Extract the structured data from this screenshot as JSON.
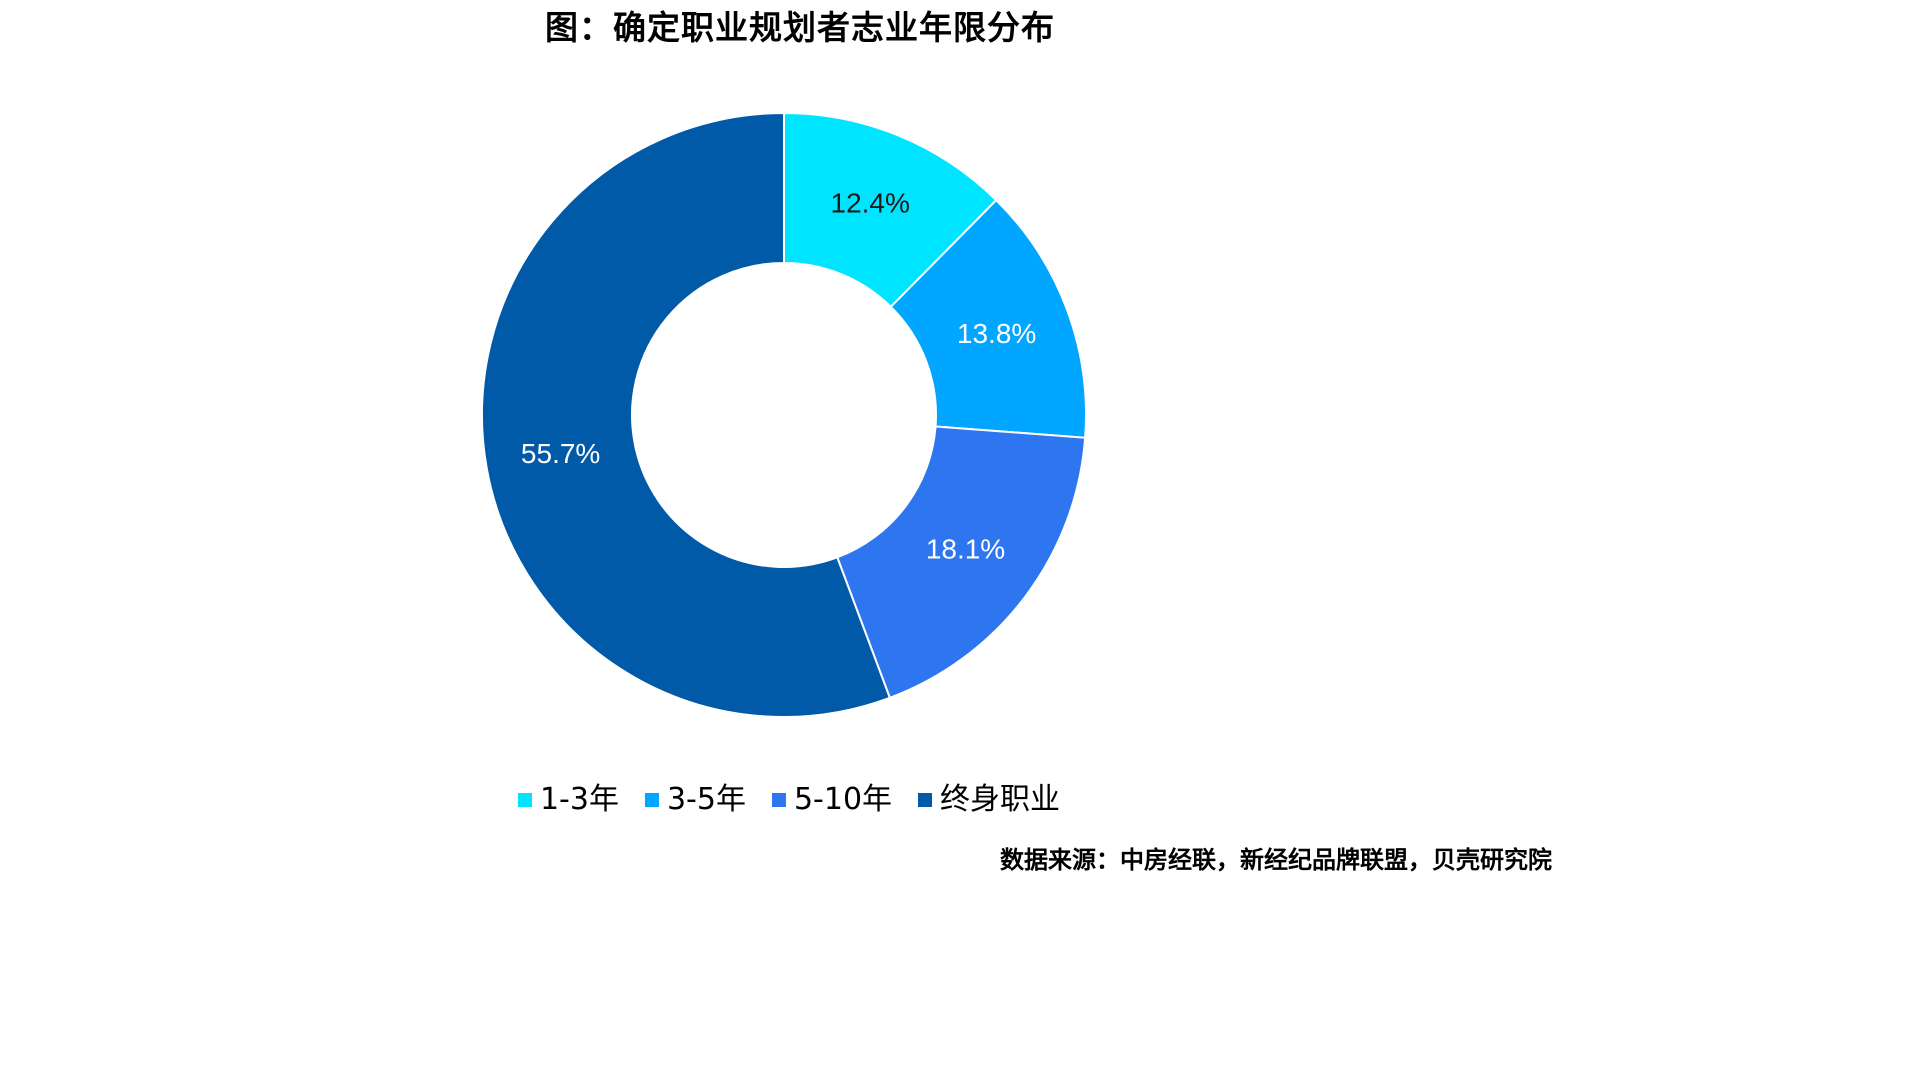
{
  "title": "图：确定职业规划者志业年限分布",
  "source": "数据来源：中房经联，新经纪品牌联盟，贝壳研究院",
  "chart_data": {
    "type": "pie",
    "donut": true,
    "title": "图：确定职业规划者志业年限分布",
    "legend_position": "bottom",
    "categories": [
      "1-3年",
      "3-5年",
      "5-10年",
      "终身职业"
    ],
    "values": [
      12.4,
      13.8,
      18.1,
      55.7
    ],
    "data_labels": [
      "12.4%",
      "13.8%",
      "18.1%",
      "55.7%"
    ],
    "colors": [
      "#00E5FF",
      "#00A6FF",
      "#2E75F0",
      "#005AA8"
    ],
    "label_colors": [
      "#1a1a1a",
      "#ffffff",
      "#ffffff",
      "#ffffff"
    ]
  }
}
